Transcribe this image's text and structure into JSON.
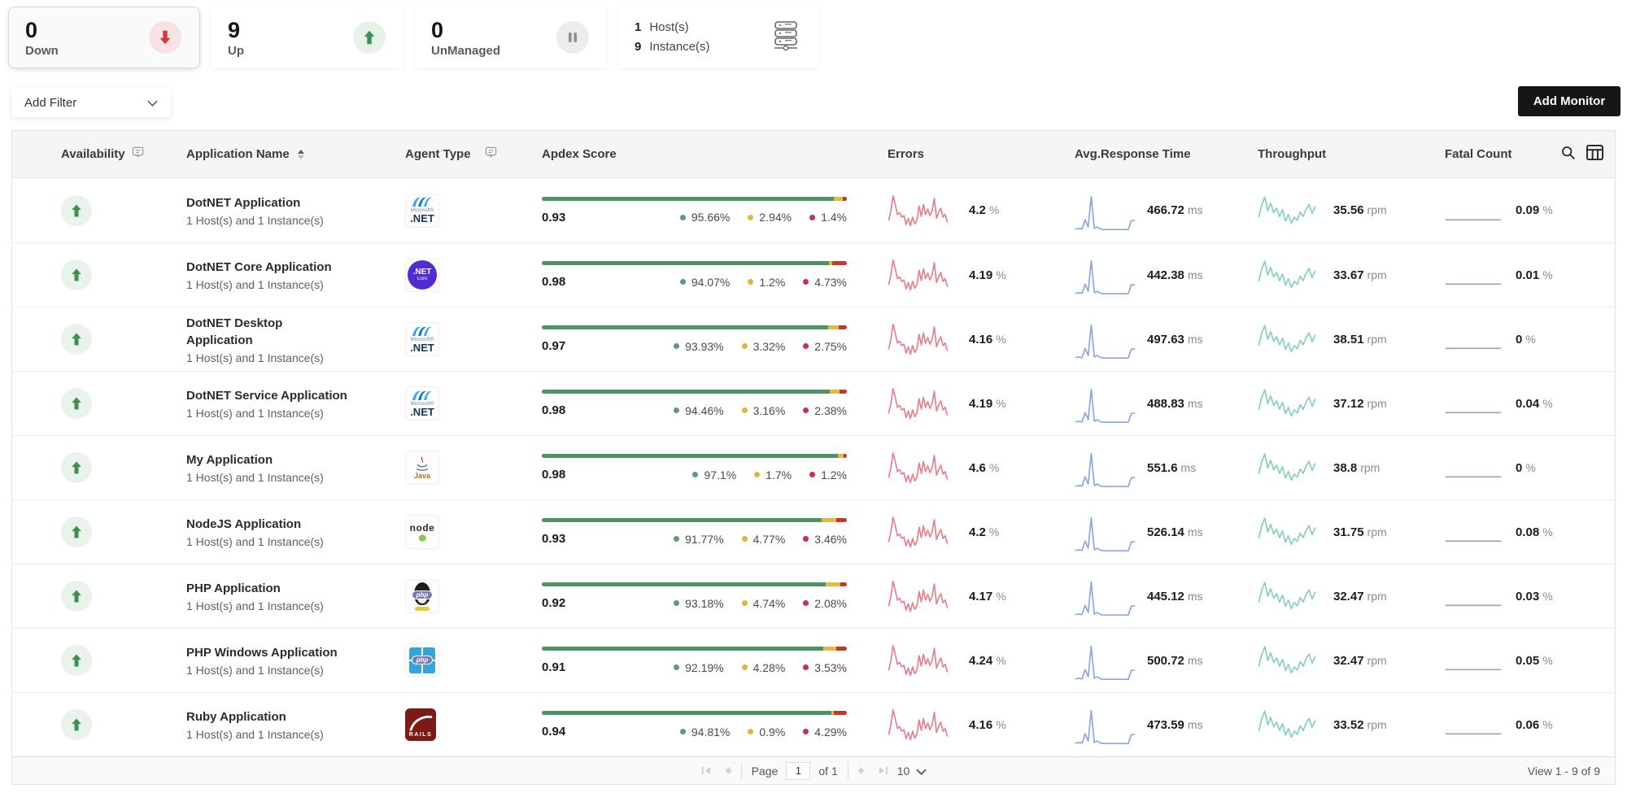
{
  "summary": {
    "down": {
      "value": "0",
      "label": "Down"
    },
    "up": {
      "value": "9",
      "label": "Up"
    },
    "unmanaged": {
      "value": "0",
      "label": "UnManaged"
    },
    "hosts": {
      "host_value": "1",
      "host_label": "Host(s)",
      "instance_value": "9",
      "instance_label": "Instance(s)"
    }
  },
  "toolbar": {
    "add_filter_label": "Add Filter",
    "add_monitor_label": "Add Monitor"
  },
  "table": {
    "columns": [
      "Availability",
      "Application Name",
      "Agent Type",
      "Apdex Score",
      "Errors",
      "Avg.Response Time",
      "Throughput",
      "Fatal Count"
    ],
    "rows": [
      {
        "name": "DotNET Application",
        "subtitle": "1 Host(s) and 1 Instance(s)",
        "agent": "dotnet",
        "apdex": "0.93",
        "good": "95.66%",
        "fair": "2.94%",
        "poor": "1.4%",
        "errors": "4.2",
        "errors_unit": "%",
        "response": "466.72",
        "response_unit": "ms",
        "throughput": "35.56",
        "throughput_unit": "rpm",
        "fatal": "0.09",
        "fatal_unit": "%"
      },
      {
        "name": "DotNET Core Application",
        "subtitle": "1 Host(s) and 1 Instance(s)",
        "agent": "dotnetcore",
        "apdex": "0.98",
        "good": "94.07%",
        "fair": "1.2%",
        "poor": "4.73%",
        "errors": "4.19",
        "errors_unit": "%",
        "response": "442.38",
        "response_unit": "ms",
        "throughput": "33.67",
        "throughput_unit": "rpm",
        "fatal": "0.01",
        "fatal_unit": "%"
      },
      {
        "name": "DotNET Desktop\nApplication",
        "subtitle": "1 Host(s) and 1 Instance(s)",
        "agent": "dotnet",
        "apdex": "0.97",
        "good": "93.93%",
        "fair": "3.32%",
        "poor": "2.75%",
        "errors": "4.16",
        "errors_unit": "%",
        "response": "497.63",
        "response_unit": "ms",
        "throughput": "38.51",
        "throughput_unit": "rpm",
        "fatal": "0",
        "fatal_unit": "%"
      },
      {
        "name": "DotNET Service Application",
        "subtitle": "1 Host(s) and 1 Instance(s)",
        "agent": "dotnet",
        "apdex": "0.98",
        "good": "94.46%",
        "fair": "3.16%",
        "poor": "2.38%",
        "errors": "4.19",
        "errors_unit": "%",
        "response": "488.83",
        "response_unit": "ms",
        "throughput": "37.12",
        "throughput_unit": "rpm",
        "fatal": "0.04",
        "fatal_unit": "%"
      },
      {
        "name": "My Application",
        "subtitle": "1 Host(s) and 1 Instance(s)",
        "agent": "java",
        "apdex": "0.98",
        "good": "97.1%",
        "fair": "1.7%",
        "poor": "1.2%",
        "errors": "4.6",
        "errors_unit": "%",
        "response": "551.6",
        "response_unit": "ms",
        "throughput": "38.8",
        "throughput_unit": "rpm",
        "fatal": "0",
        "fatal_unit": "%"
      },
      {
        "name": "NodeJS Application",
        "subtitle": "1 Host(s) and 1 Instance(s)",
        "agent": "node",
        "apdex": "0.93",
        "good": "91.77%",
        "fair": "4.77%",
        "poor": "3.46%",
        "errors": "4.2",
        "errors_unit": "%",
        "response": "526.14",
        "response_unit": "ms",
        "throughput": "31.75",
        "throughput_unit": "rpm",
        "fatal": "0.08",
        "fatal_unit": "%"
      },
      {
        "name": "PHP Application",
        "subtitle": "1 Host(s) and 1 Instance(s)",
        "agent": "phplinux",
        "apdex": "0.92",
        "good": "93.18%",
        "fair": "4.74%",
        "poor": "2.08%",
        "errors": "4.17",
        "errors_unit": "%",
        "response": "445.12",
        "response_unit": "ms",
        "throughput": "32.47",
        "throughput_unit": "rpm",
        "fatal": "0.03",
        "fatal_unit": "%"
      },
      {
        "name": "PHP Windows Application",
        "subtitle": "1 Host(s) and 1 Instance(s)",
        "agent": "phpwindows",
        "apdex": "0.91",
        "good": "92.19%",
        "fair": "4.28%",
        "poor": "3.53%",
        "errors": "4.24",
        "errors_unit": "%",
        "response": "500.72",
        "response_unit": "ms",
        "throughput": "32.47",
        "throughput_unit": "rpm",
        "fatal": "0.05",
        "fatal_unit": "%"
      },
      {
        "name": "Ruby Application",
        "subtitle": "1 Host(s) and 1 Instance(s)",
        "agent": "rails",
        "apdex": "0.94",
        "good": "94.81%",
        "fair": "0.9%",
        "poor": "4.29%",
        "errors": "4.16",
        "errors_unit": "%",
        "response": "473.59",
        "response_unit": "ms",
        "throughput": "33.52",
        "throughput_unit": "rpm",
        "fatal": "0.06",
        "fatal_unit": "%"
      }
    ]
  },
  "pagination": {
    "page_label": "Page",
    "page_value": "1",
    "of_text": "of 1",
    "page_size": "10",
    "view_text": "View 1 - 9 of 9"
  },
  "sparklines": {
    "errors": [
      0.3,
      0.55,
      0.95,
      0.72,
      0.45,
      0.5,
      0.38,
      0.42,
      0.18,
      0.35,
      0.15,
      0.38,
      0.2,
      0.3,
      0.68,
      0.4,
      0.72,
      0.45,
      0.6,
      0.42,
      0.55,
      0.88,
      0.35,
      0.5,
      0.62,
      0.38,
      0.45,
      0.25
    ],
    "response": [
      0.04,
      0.06,
      0.04,
      0.3,
      0.1,
      0.95,
      0.06,
      0.1,
      0.04,
      0.03,
      0.03,
      0.03,
      0.03,
      0.03,
      0.03,
      0.03,
      0.03,
      0.03,
      0.28,
      0.28
    ],
    "throughput": [
      0.4,
      0.72,
      0.92,
      0.55,
      0.75,
      0.5,
      0.62,
      0.4,
      0.58,
      0.28,
      0.45,
      0.22,
      0.38,
      0.3,
      0.52,
      0.4,
      0.6,
      0.72,
      0.48,
      0.66
    ],
    "fatal": [
      0.1,
      0.1,
      0.1,
      0.1
    ]
  },
  "colors": {
    "apdex_good": "#4c9464",
    "apdex_fair": "#e3b93f",
    "apdex_poor": "#c0392b",
    "errors_spark": "#e4828d",
    "response_spark": "#8ca6e6",
    "throughput_spark": "#86cfc0",
    "fatal_spark": "#9aa0b5",
    "up_green": "#3d9150",
    "down_red": "#d63a3a",
    "pause_gray": "#8f8f8f",
    "button_dark": "#161616"
  }
}
